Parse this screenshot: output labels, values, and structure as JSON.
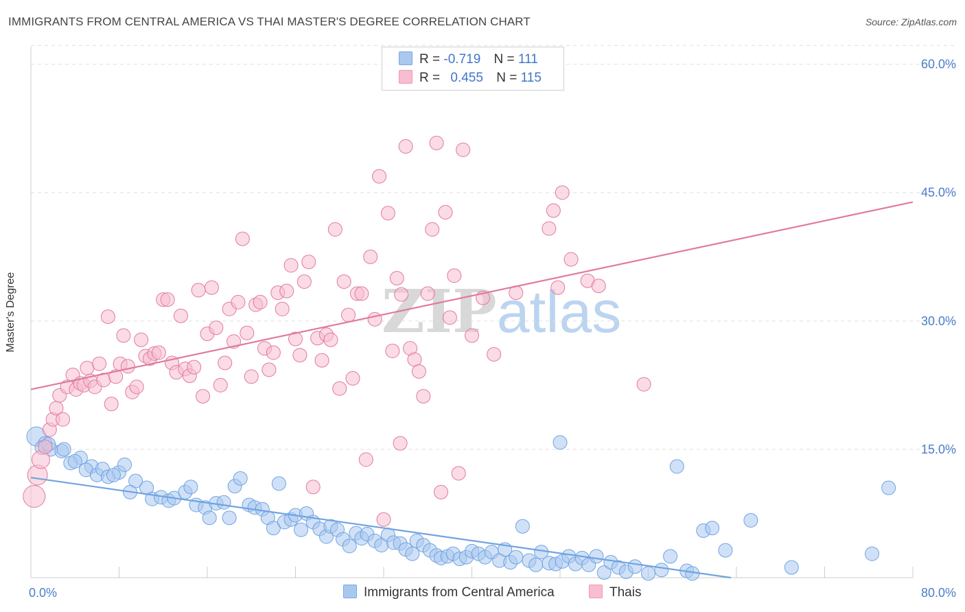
{
  "header": {
    "title": "IMMIGRANTS FROM CENTRAL AMERICA VS THAI MASTER'S DEGREE CORRELATION CHART",
    "source": "Source: ZipAtlas.com"
  },
  "watermark": {
    "zip": "ZIP",
    "atlas": "atlas"
  },
  "legend": {
    "r_label": "R =",
    "n_label": "N =",
    "rows": [
      {
        "r": "-0.719",
        "n": "111",
        "color": "#a9c8f0"
      },
      {
        "r": "0.455",
        "n": "115",
        "color": "#f8bdd0"
      }
    ]
  },
  "bottom_legend": [
    {
      "label": "Immigrants from Central America",
      "color": "#a9c8f0"
    },
    {
      "label": "Thais",
      "color": "#f8bdd0"
    }
  ],
  "chart_data": {
    "type": "scatter",
    "xlabel": "",
    "ylabel": "Master's Degree",
    "xlim": [
      0,
      80
    ],
    "ylim": [
      0,
      63.5
    ],
    "x_tick_labels": [
      "0.0%",
      "80.0%"
    ],
    "y_ticks": [
      15,
      30,
      45,
      60
    ],
    "y_tick_labels": [
      "15.0%",
      "30.0%",
      "45.0%",
      "60.0%"
    ],
    "grid": true,
    "legend_position": "top-center",
    "series": [
      {
        "name": "Immigrants from Central America",
        "color": "#6fa3e0",
        "fill": "#a9c8f0",
        "r": -0.719,
        "n": 111,
        "trend": {
          "x": [
            0,
            63.5
          ],
          "y": [
            11.7,
            0
          ]
        },
        "points": [
          [
            0.5,
            16.5
          ],
          [
            1.3,
            15.7
          ],
          [
            1.0,
            15.2
          ],
          [
            1.8,
            15.0
          ],
          [
            2.8,
            14.8
          ],
          [
            3.0,
            15.0
          ],
          [
            4.5,
            14.0
          ],
          [
            3.6,
            13.4
          ],
          [
            4.0,
            13.6
          ],
          [
            5.5,
            13.0
          ],
          [
            5.0,
            12.6
          ],
          [
            6.0,
            12.0
          ],
          [
            6.5,
            12.7
          ],
          [
            7.0,
            11.8
          ],
          [
            8.0,
            12.3
          ],
          [
            8.5,
            13.2
          ],
          [
            7.5,
            12.0
          ],
          [
            9.5,
            11.3
          ],
          [
            9.0,
            10.0
          ],
          [
            10.5,
            10.5
          ],
          [
            11.0,
            9.2
          ],
          [
            11.8,
            9.4
          ],
          [
            12.5,
            9.0
          ],
          [
            13.0,
            9.3
          ],
          [
            14.0,
            10.0
          ],
          [
            14.5,
            10.6
          ],
          [
            15.0,
            8.5
          ],
          [
            15.8,
            8.2
          ],
          [
            16.2,
            7.0
          ],
          [
            16.8,
            8.7
          ],
          [
            17.5,
            8.8
          ],
          [
            18.0,
            7.0
          ],
          [
            18.5,
            10.7
          ],
          [
            19.0,
            11.6
          ],
          [
            19.8,
            8.5
          ],
          [
            20.3,
            8.2
          ],
          [
            21.0,
            8.0
          ],
          [
            21.5,
            7.0
          ],
          [
            22.0,
            5.8
          ],
          [
            22.5,
            11.0
          ],
          [
            23.0,
            6.5
          ],
          [
            23.6,
            6.8
          ],
          [
            24.0,
            7.3
          ],
          [
            24.5,
            5.6
          ],
          [
            25.0,
            7.5
          ],
          [
            25.6,
            6.5
          ],
          [
            26.2,
            5.7
          ],
          [
            26.8,
            4.8
          ],
          [
            27.2,
            6.0
          ],
          [
            27.8,
            5.6
          ],
          [
            28.3,
            4.5
          ],
          [
            28.9,
            3.7
          ],
          [
            29.5,
            5.2
          ],
          [
            30.0,
            4.6
          ],
          [
            30.5,
            5.1
          ],
          [
            31.2,
            4.3
          ],
          [
            31.8,
            3.8
          ],
          [
            32.4,
            5.0
          ],
          [
            32.9,
            4.1
          ],
          [
            33.5,
            4.0
          ],
          [
            34.0,
            3.3
          ],
          [
            34.6,
            2.8
          ],
          [
            35.0,
            4.3
          ],
          [
            35.6,
            3.8
          ],
          [
            36.2,
            3.2
          ],
          [
            36.8,
            2.6
          ],
          [
            37.2,
            2.3
          ],
          [
            37.8,
            2.5
          ],
          [
            38.3,
            2.8
          ],
          [
            38.9,
            2.2
          ],
          [
            39.5,
            2.4
          ],
          [
            40.0,
            3.1
          ],
          [
            40.6,
            2.8
          ],
          [
            41.2,
            2.4
          ],
          [
            41.8,
            3.0
          ],
          [
            42.5,
            2.0
          ],
          [
            43.0,
            3.3
          ],
          [
            43.5,
            1.8
          ],
          [
            44.0,
            2.4
          ],
          [
            44.6,
            6.0
          ],
          [
            45.2,
            2.0
          ],
          [
            45.8,
            1.5
          ],
          [
            46.3,
            3.0
          ],
          [
            47.0,
            1.7
          ],
          [
            47.6,
            1.6
          ],
          [
            48.2,
            1.9
          ],
          [
            48.8,
            2.5
          ],
          [
            49.4,
            1.6
          ],
          [
            50.0,
            2.3
          ],
          [
            50.6,
            1.5
          ],
          [
            51.3,
            2.5
          ],
          [
            52.0,
            0.6
          ],
          [
            52.6,
            1.8
          ],
          [
            53.3,
            1.2
          ],
          [
            54.0,
            0.7
          ],
          [
            54.8,
            1.3
          ],
          [
            56.0,
            0.5
          ],
          [
            57.2,
            0.9
          ],
          [
            58.0,
            2.5
          ],
          [
            59.5,
            0.8
          ],
          [
            60.0,
            0.5
          ],
          [
            61.0,
            5.5
          ],
          [
            61.8,
            5.8
          ],
          [
            63.0,
            3.2
          ],
          [
            65.3,
            6.7
          ],
          [
            69.0,
            1.2
          ],
          [
            76.3,
            2.8
          ],
          [
            48.0,
            15.8
          ],
          [
            58.6,
            13.0
          ],
          [
            77.8,
            10.5
          ],
          [
            1.6,
            15.6
          ]
        ]
      },
      {
        "name": "Thais",
        "color": "#e07aa0",
        "fill": "#f8bdd0",
        "r": 0.455,
        "n": 115,
        "trend": {
          "x": [
            0,
            80
          ],
          "y": [
            22.0,
            43.9
          ]
        },
        "points": [
          [
            0.3,
            9.5
          ],
          [
            0.6,
            12.0
          ],
          [
            0.9,
            13.8
          ],
          [
            1.3,
            15.3
          ],
          [
            1.7,
            17.3
          ],
          [
            2.0,
            18.5
          ],
          [
            2.3,
            19.8
          ],
          [
            2.6,
            21.3
          ],
          [
            2.9,
            18.5
          ],
          [
            3.3,
            22.3
          ],
          [
            3.8,
            23.7
          ],
          [
            4.1,
            22.0
          ],
          [
            4.5,
            22.7
          ],
          [
            4.8,
            22.5
          ],
          [
            5.1,
            24.5
          ],
          [
            5.4,
            23.0
          ],
          [
            5.8,
            22.3
          ],
          [
            6.2,
            25.0
          ],
          [
            6.6,
            23.1
          ],
          [
            7.0,
            30.5
          ],
          [
            7.3,
            20.3
          ],
          [
            7.7,
            23.5
          ],
          [
            8.1,
            25.0
          ],
          [
            8.4,
            28.3
          ],
          [
            8.8,
            24.7
          ],
          [
            9.2,
            21.7
          ],
          [
            9.6,
            22.3
          ],
          [
            10.0,
            27.8
          ],
          [
            10.4,
            25.9
          ],
          [
            10.8,
            25.6
          ],
          [
            11.2,
            26.2
          ],
          [
            11.6,
            26.3
          ],
          [
            12.0,
            32.5
          ],
          [
            12.4,
            32.5
          ],
          [
            12.8,
            25.1
          ],
          [
            13.2,
            24.0
          ],
          [
            13.6,
            30.6
          ],
          [
            14.0,
            24.4
          ],
          [
            14.4,
            23.6
          ],
          [
            14.8,
            24.6
          ],
          [
            15.2,
            33.6
          ],
          [
            15.6,
            21.2
          ],
          [
            16.0,
            28.5
          ],
          [
            16.4,
            33.9
          ],
          [
            16.8,
            29.2
          ],
          [
            17.2,
            22.5
          ],
          [
            17.6,
            25.1
          ],
          [
            18.0,
            31.4
          ],
          [
            18.4,
            27.6
          ],
          [
            18.8,
            32.2
          ],
          [
            19.2,
            39.6
          ],
          [
            19.6,
            28.6
          ],
          [
            20.0,
            23.5
          ],
          [
            20.4,
            31.9
          ],
          [
            20.8,
            32.2
          ],
          [
            21.2,
            26.8
          ],
          [
            21.6,
            24.3
          ],
          [
            22.0,
            26.3
          ],
          [
            22.4,
            33.3
          ],
          [
            22.8,
            31.4
          ],
          [
            23.2,
            33.5
          ],
          [
            23.6,
            36.5
          ],
          [
            24.0,
            27.9
          ],
          [
            24.4,
            26.0
          ],
          [
            24.8,
            34.6
          ],
          [
            25.2,
            36.9
          ],
          [
            25.6,
            10.6
          ],
          [
            26.0,
            28.0
          ],
          [
            26.4,
            25.4
          ],
          [
            26.8,
            28.4
          ],
          [
            27.2,
            27.8
          ],
          [
            27.6,
            40.7
          ],
          [
            28.0,
            22.1
          ],
          [
            28.4,
            34.6
          ],
          [
            28.8,
            30.7
          ],
          [
            29.2,
            23.3
          ],
          [
            29.6,
            33.2
          ],
          [
            30.0,
            33.2
          ],
          [
            30.4,
            13.8
          ],
          [
            30.8,
            37.5
          ],
          [
            31.2,
            30.2
          ],
          [
            31.6,
            46.9
          ],
          [
            32.0,
            6.8
          ],
          [
            32.4,
            42.6
          ],
          [
            32.8,
            26.5
          ],
          [
            33.2,
            35.0
          ],
          [
            33.6,
            33.1
          ],
          [
            34.0,
            50.4
          ],
          [
            34.4,
            26.8
          ],
          [
            34.8,
            25.5
          ],
          [
            35.2,
            24.1
          ],
          [
            35.6,
            21.2
          ],
          [
            36.0,
            33.2
          ],
          [
            36.4,
            40.7
          ],
          [
            36.8,
            50.8
          ],
          [
            37.2,
            10.0
          ],
          [
            37.6,
            42.7
          ],
          [
            38.0,
            30.4
          ],
          [
            38.4,
            35.3
          ],
          [
            38.8,
            12.2
          ],
          [
            39.2,
            50.0
          ],
          [
            40.0,
            28.3
          ],
          [
            41.0,
            32.7
          ],
          [
            42.0,
            26.1
          ],
          [
            44.0,
            33.3
          ],
          [
            47.0,
            40.8
          ],
          [
            47.4,
            42.9
          ],
          [
            47.8,
            33.9
          ],
          [
            48.2,
            45.0
          ],
          [
            49.0,
            37.2
          ],
          [
            50.5,
            34.7
          ],
          [
            51.5,
            34.1
          ],
          [
            55.6,
            22.6
          ],
          [
            33.5,
            15.7
          ]
        ]
      }
    ]
  }
}
